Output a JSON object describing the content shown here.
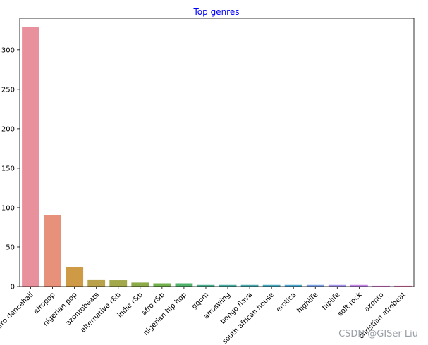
{
  "chart_data": {
    "type": "bar",
    "title": "Top genres",
    "title_color": "#0000ff",
    "xlabel": "",
    "ylabel": "",
    "ylim": [
      0,
      340
    ],
    "yticks": [
      0,
      50,
      100,
      150,
      200,
      250,
      300
    ],
    "grid": false,
    "categories": [
      "afro dancehall",
      "afropop",
      "nigerian pop",
      "azontobeats",
      "alternative r&b",
      "indie r&b",
      "afro r&b",
      "nigerian hip hop",
      "gqom",
      "afroswing",
      "bongo flava",
      "south african house",
      "erotica",
      "highlife",
      "hiplife",
      "soft rock",
      "azonto",
      "christian afrobeat"
    ],
    "values": [
      329,
      91,
      25,
      9,
      8,
      5,
      4,
      4,
      2,
      2,
      2,
      2,
      2,
      2,
      2,
      2,
      1,
      1
    ],
    "colors": [
      "#e8909c",
      "#e8917a",
      "#cf9a45",
      "#b9a249",
      "#a3a84b",
      "#8dab48",
      "#72b04c",
      "#4fb16a",
      "#48ad8f",
      "#47ab9f",
      "#49a9ad",
      "#4aa8bc",
      "#4ea6cd",
      "#7a9fe3",
      "#a392e8",
      "#c386e7",
      "#e17fd9",
      "#e880b4"
    ]
  },
  "watermark": "CSDN @GISer Liu"
}
